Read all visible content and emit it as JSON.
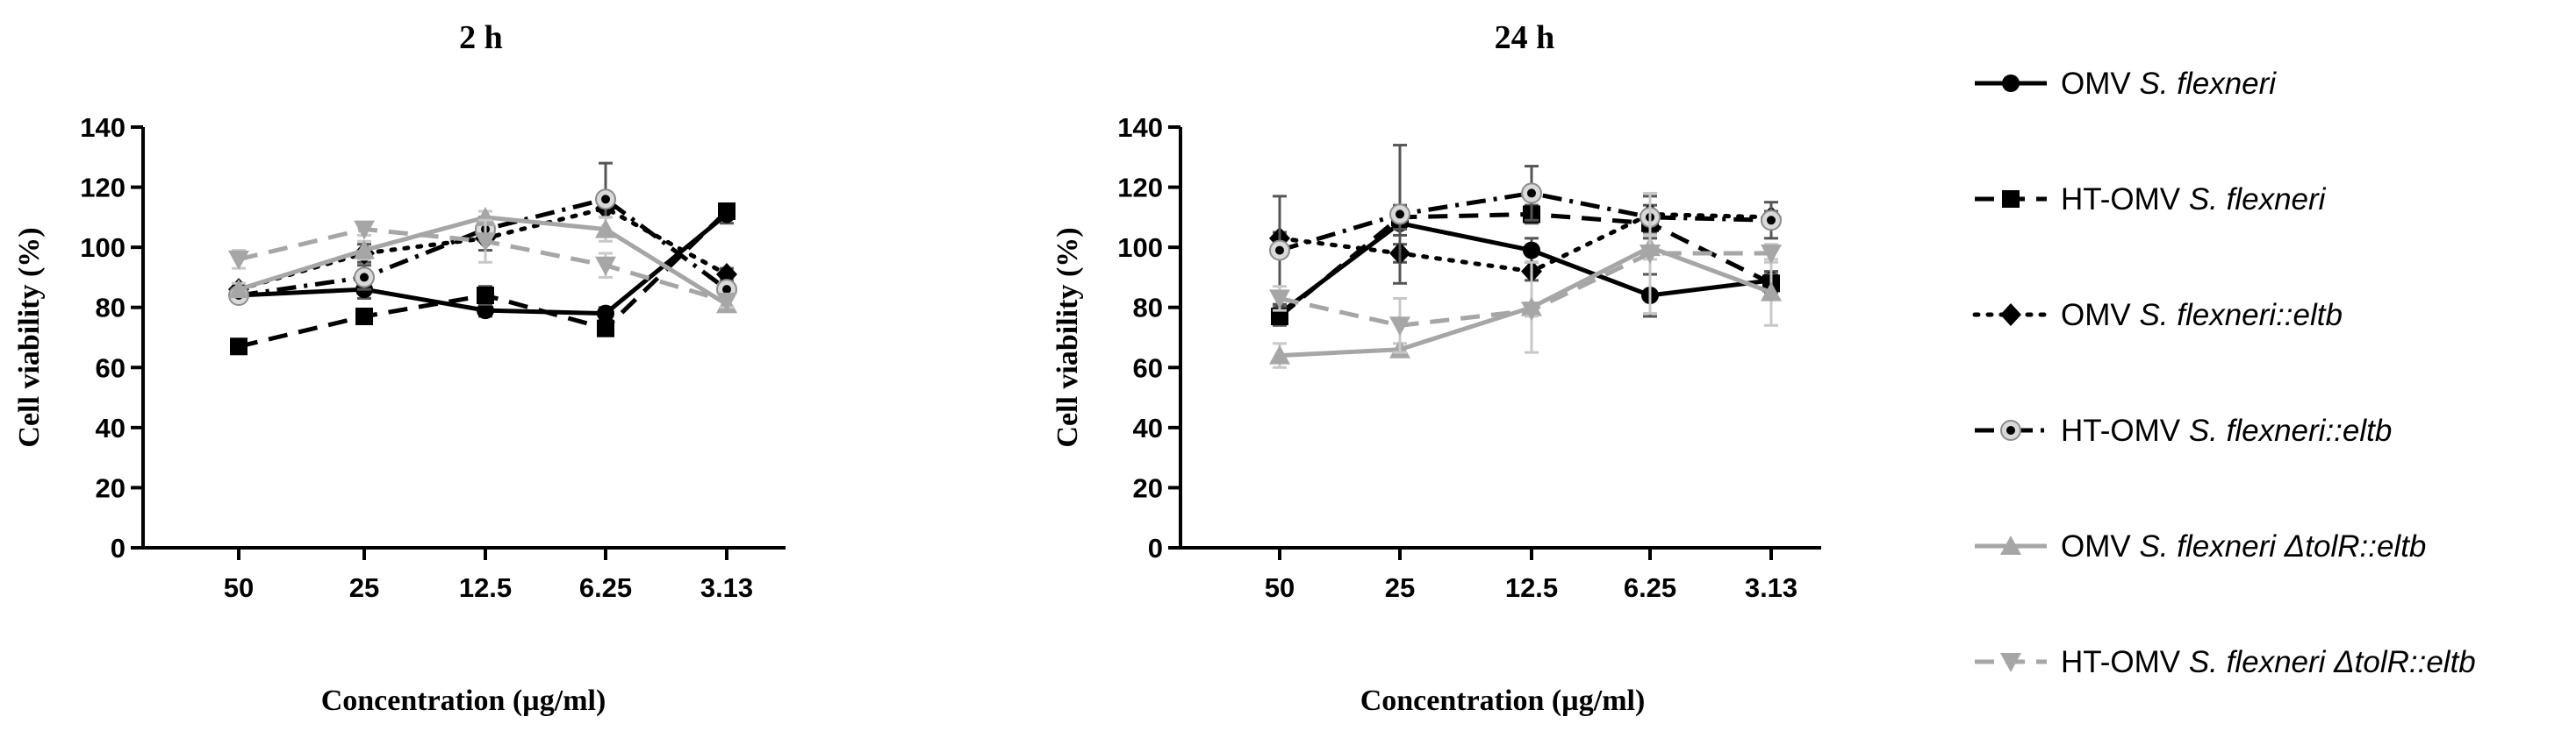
{
  "chart_data": [
    {
      "type": "line",
      "title": "2 h",
      "xlabel": "Concentration (µg/ml)",
      "ylabel": "Cell viability (%)",
      "categories": [
        "50",
        "25",
        "12.5",
        "6.25",
        "3.13"
      ],
      "ylim": [
        0,
        140
      ],
      "yticks": [
        "0",
        "20",
        "40",
        "60",
        "80",
        "100",
        "120",
        "140"
      ],
      "grid": false,
      "series": [
        {
          "values": [
            84,
            86,
            79,
            78,
            111
          ],
          "errors": [
            2,
            3,
            2,
            2,
            3
          ]
        },
        {
          "values": [
            67,
            77,
            84,
            73,
            112
          ],
          "errors": [
            1,
            2,
            3,
            2,
            2
          ]
        },
        {
          "values": [
            86,
            98,
            103,
            113,
            91
          ],
          "errors": [
            2,
            3,
            4,
            3,
            2
          ]
        },
        {
          "values": [
            84,
            90,
            106,
            116,
            86
          ],
          "errors": [
            2,
            4,
            4,
            12,
            2
          ]
        },
        {
          "values": [
            86,
            99,
            110,
            106,
            81
          ],
          "errors": [
            2,
            3,
            2,
            4,
            2
          ]
        },
        {
          "values": [
            96,
            106,
            102,
            94,
            82
          ],
          "errors": [
            3,
            2,
            7,
            4,
            2
          ]
        }
      ]
    },
    {
      "type": "line",
      "title": "24 h",
      "xlabel": "Concentration (µg/ml)",
      "ylabel": "Cell viability (%)",
      "categories": [
        "50",
        "25",
        "12.5",
        "6.25",
        "3.13"
      ],
      "ylim": [
        0,
        140
      ],
      "yticks": [
        "0",
        "20",
        "40",
        "60",
        "80",
        "100",
        "120",
        "140"
      ],
      "grid": false,
      "series": [
        {
          "values": [
            78,
            108,
            99,
            84,
            89
          ],
          "errors": [
            3,
            4,
            4,
            7,
            3
          ]
        },
        {
          "values": [
            77,
            110,
            111,
            108,
            88
          ],
          "errors": [
            3,
            4,
            3,
            3,
            3
          ]
        },
        {
          "values": [
            103,
            98,
            92,
            111,
            110
          ],
          "errors": [
            2,
            3,
            3,
            3,
            2
          ]
        },
        {
          "values": [
            99,
            111,
            118,
            110,
            109
          ],
          "errors": [
            18,
            23,
            9,
            7,
            6
          ]
        },
        {
          "values": [
            64,
            66,
            80,
            100,
            85
          ],
          "errors": [
            4,
            2,
            15,
            4,
            11
          ]
        },
        {
          "values": [
            83,
            74,
            79,
            98,
            98
          ],
          "errors": [
            4,
            9,
            2,
            20,
            3
          ]
        }
      ]
    }
  ],
  "legend": {
    "placement": "right",
    "entries": [
      {
        "prefix": "OMV ",
        "italic": "S. flexneri",
        "color": "#000000",
        "dash": "solid",
        "marker": "circle"
      },
      {
        "prefix": "HT-OMV ",
        "italic": "S. flexneri",
        "color": "#000000",
        "dash": "dashed",
        "marker": "square"
      },
      {
        "prefix": "OMV ",
        "italic": "S. flexneri::eltb",
        "color": "#000000",
        "dash": "dotted",
        "marker": "diamond"
      },
      {
        "prefix": "HT-OMV ",
        "italic": "S. flexneri::eltb",
        "color": "#000000",
        "dash": "dashdot",
        "marker": "ringdot"
      },
      {
        "prefix": "OMV ",
        "italic": "S. flexneri ΔtolR::eltb",
        "color": "#a6a6a6",
        "dash": "solid",
        "marker": "triangle-up"
      },
      {
        "prefix": "HT-OMV ",
        "italic": "S. flexneri ΔtolR::eltb",
        "color": "#a6a6a6",
        "dash": "dashed",
        "marker": "triangle-down"
      }
    ]
  }
}
